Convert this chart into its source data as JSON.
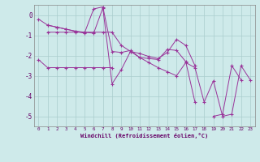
{
  "xlabel": "Windchill (Refroidissement éolien,°C)",
  "bg_color": "#ceeaea",
  "line_color": "#993399",
  "grid_color": "#aacccc",
  "ylim": [
    -5.5,
    0.5
  ],
  "xlim": [
    -0.5,
    23.5
  ],
  "yticks": [
    0,
    -1,
    -2,
    -3,
    -4,
    -5
  ],
  "xticks": [
    0,
    1,
    2,
    3,
    4,
    5,
    6,
    7,
    8,
    9,
    10,
    11,
    12,
    13,
    14,
    15,
    16,
    17,
    18,
    19,
    20,
    21,
    22,
    23
  ],
  "series": [
    [
      -0.2,
      -0.5,
      -0.6,
      -0.7,
      -0.8,
      -0.9,
      0.3,
      0.4,
      -1.8,
      -1.85,
      -1.75,
      -2.1,
      -2.15,
      -2.2,
      -1.7,
      -1.75,
      -2.3,
      -4.3,
      null,
      -5.0,
      -4.9,
      -2.5,
      -3.2,
      null
    ],
    [
      null,
      -0.5,
      -0.6,
      -0.7,
      -0.8,
      -0.85,
      -0.9,
      0.35,
      -3.4,
      -2.7,
      -1.8,
      -1.9,
      -2.05,
      -2.15,
      -1.85,
      -1.2,
      -1.5,
      -2.5,
      null,
      null,
      null,
      null,
      null,
      null
    ],
    [
      -2.2,
      -2.6,
      -2.6,
      -2.6,
      -2.6,
      -2.6,
      -2.6,
      -2.6,
      -2.6,
      null,
      null,
      null,
      null,
      null,
      null,
      null,
      null,
      null,
      null,
      null,
      null,
      null,
      null,
      null
    ],
    [
      null,
      -0.85,
      -0.85,
      -0.85,
      -0.85,
      -0.85,
      -0.85,
      -0.85,
      -0.85,
      -1.5,
      -1.8,
      -2.1,
      -2.35,
      -2.6,
      -2.8,
      -3.0,
      -2.35,
      -2.6,
      -4.3,
      -3.25,
      -5.0,
      -4.9,
      -2.5,
      -3.2
    ]
  ]
}
